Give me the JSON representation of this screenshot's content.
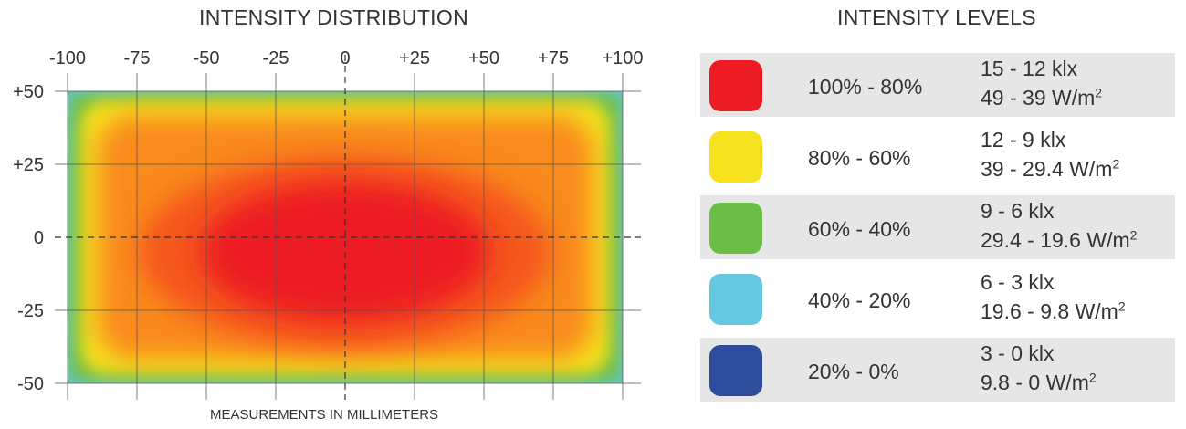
{
  "distribution": {
    "title": "INTENSITY DISTRIBUTION",
    "xlabel": "MEASUREMENTS IN MILLIMETERS"
  },
  "chart_data": {
    "type": "heatmap",
    "title": "INTENSITY DISTRIBUTION",
    "xlabel": "MEASUREMENTS IN MILLIMETERS",
    "ylabel": "",
    "xlim": [
      -100,
      100
    ],
    "ylim": [
      -50,
      50
    ],
    "x_ticks": [
      "-100",
      "-75",
      "-50",
      "-25",
      "0",
      "+25",
      "+50",
      "+75",
      "+100"
    ],
    "y_ticks": [
      "+50",
      "+25",
      "0",
      "-25",
      "-50"
    ],
    "x_tick_values": [
      -100,
      -75,
      -50,
      -25,
      0,
      25,
      50,
      75,
      100
    ],
    "y_tick_values": [
      50,
      25,
      0,
      -25,
      -50
    ],
    "grid": true,
    "center_axes_dashed": true,
    "field": {
      "x_range": [
        -100,
        100
      ],
      "y_range": [
        -50,
        50
      ],
      "peak_center": [
        0,
        -5
      ],
      "interior_level": "100% - 80%",
      "edge_sequence": [
        "80% - 60%",
        "60% - 40%",
        "40% - 20%"
      ]
    }
  },
  "legend": {
    "title": "INTENSITY LEVELS",
    "items": [
      {
        "color": "#ed1c24",
        "range": "100% - 80%",
        "lux": "15 - 12 klx",
        "irr": "49 - 39 W/m",
        "exp": "2",
        "shaded": true
      },
      {
        "color": "#f6e31d",
        "range": "80% - 60%",
        "lux": "12 - 9 klx",
        "irr": "39 - 29.4 W/m",
        "exp": "2",
        "shaded": false
      },
      {
        "color": "#6abd45",
        "range": "60% - 40%",
        "lux": "9 - 6 klx",
        "irr": "29.4 - 19.6 W/m",
        "exp": "2",
        "shaded": true
      },
      {
        "color": "#66c8e0",
        "range": "40% - 20%",
        "lux": "6 - 3 klx",
        "irr": "19.6 - 9.8 W/m",
        "exp": "2",
        "shaded": false
      },
      {
        "color": "#2e4d9c",
        "range": "20% - 0%",
        "lux": "3 - 0 klx",
        "irr": "9.8 - 0 W/m",
        "exp": "2",
        "shaded": true
      }
    ]
  }
}
